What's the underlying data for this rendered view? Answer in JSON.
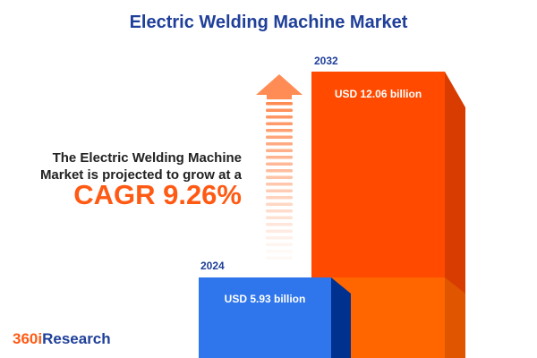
{
  "title": "Electric Welding Machine Market",
  "description": {
    "line1": "The Electric Welding Machine",
    "line2": "Market is projected to grow at a",
    "cagr": "CAGR 9.26%"
  },
  "logo": {
    "prefix": "360i",
    "suffix": "Research"
  },
  "colors": {
    "bar_2024": "#2f76ec",
    "bar_2032": "#ff4a00",
    "title": "#1f3f99",
    "accent": "#ff5a14"
  },
  "chart_data": {
    "type": "bar",
    "categories": [
      "2024",
      "2032"
    ],
    "values": [
      5.93,
      12.06
    ],
    "data_labels": [
      "USD 5.93 billion",
      "USD 12.06 billion"
    ],
    "title": "Electric Welding Machine Market",
    "annotation": "CAGR 9.26%"
  }
}
